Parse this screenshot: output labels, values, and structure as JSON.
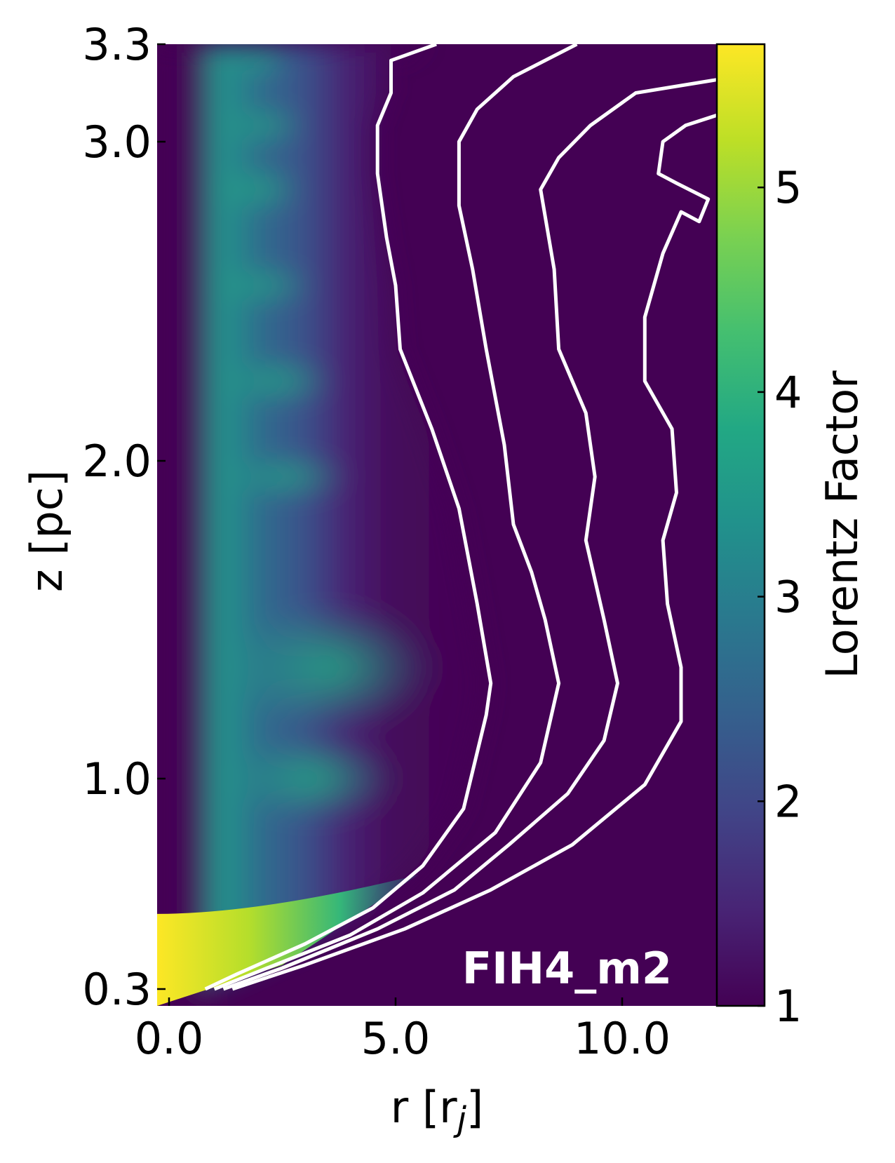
{
  "chart_data": {
    "type": "heatmap",
    "title": "",
    "panel_label": "FIH4_m2",
    "xlabel": "r [r",
    "xlabel_sub": "j",
    "xlabel_close": "]",
    "ylabel": "z [pc]",
    "colorbar_label": "Lorentz Factor",
    "colormap": "viridis",
    "xlim": [
      0,
      12.5
    ],
    "ylim": [
      0.3,
      3.3
    ],
    "clim": [
      1,
      5.7
    ],
    "x_ticks": [
      {
        "value": 0,
        "label": "0.0"
      },
      {
        "value": 5,
        "label": "5.0"
      },
      {
        "value": 10,
        "label": "10.0"
      }
    ],
    "y_ticks": [
      {
        "value": 0.3,
        "label": "0.3"
      },
      {
        "value": 1.0,
        "label": "1.0"
      },
      {
        "value": 2.0,
        "label": "2.0"
      },
      {
        "value": 3.0,
        "label": "3.0"
      },
      {
        "value": 3.3,
        "label": "3.3"
      }
    ],
    "colorbar_ticks": [
      {
        "value": 1,
        "label": "1"
      },
      {
        "value": 2,
        "label": "2"
      },
      {
        "value": 3,
        "label": "3"
      },
      {
        "value": 4,
        "label": "4"
      },
      {
        "value": 5,
        "label": "5"
      }
    ],
    "contour_color": "#ffffff",
    "contours": [
      {
        "points": [
          [
            0.8,
            0.3
          ],
          [
            1.5,
            0.35
          ],
          [
            3.0,
            0.45
          ],
          [
            4.5,
            0.57
          ],
          [
            5.6,
            0.71
          ],
          [
            6.5,
            0.9
          ],
          [
            7.0,
            1.2
          ],
          [
            7.1,
            1.3
          ],
          [
            6.8,
            1.55
          ],
          [
            6.4,
            1.85
          ],
          [
            5.8,
            2.1
          ],
          [
            5.1,
            2.35
          ],
          [
            5.0,
            2.55
          ],
          [
            4.8,
            2.7
          ],
          [
            4.6,
            2.9
          ],
          [
            4.6,
            3.05
          ],
          [
            4.9,
            3.15
          ],
          [
            4.9,
            3.25
          ],
          [
            5.9,
            3.3
          ]
        ]
      },
      {
        "points": [
          [
            1.0,
            0.3
          ],
          [
            2.0,
            0.36
          ],
          [
            4.0,
            0.48
          ],
          [
            5.6,
            0.62
          ],
          [
            7.2,
            0.82
          ],
          [
            8.2,
            1.05
          ],
          [
            8.6,
            1.3
          ],
          [
            8.3,
            1.5
          ],
          [
            8.0,
            1.65
          ],
          [
            7.6,
            1.8
          ],
          [
            7.4,
            2.05
          ],
          [
            7.0,
            2.35
          ],
          [
            6.7,
            2.6
          ],
          [
            6.4,
            2.8
          ],
          [
            6.4,
            3.0
          ],
          [
            6.8,
            3.1
          ],
          [
            7.6,
            3.2
          ],
          [
            9.0,
            3.3
          ]
        ]
      },
      {
        "points": [
          [
            1.2,
            0.3
          ],
          [
            2.5,
            0.37
          ],
          [
            4.6,
            0.5
          ],
          [
            6.3,
            0.63
          ],
          [
            7.5,
            0.78
          ],
          [
            8.8,
            0.95
          ],
          [
            9.6,
            1.12
          ],
          [
            9.9,
            1.3
          ],
          [
            9.6,
            1.5
          ],
          [
            9.2,
            1.75
          ],
          [
            9.4,
            1.95
          ],
          [
            9.2,
            2.15
          ],
          [
            8.6,
            2.35
          ],
          [
            8.5,
            2.6
          ],
          [
            8.2,
            2.85
          ],
          [
            8.6,
            2.95
          ],
          [
            9.3,
            3.05
          ],
          [
            10.3,
            3.15
          ],
          [
            12.5,
            3.2
          ]
        ]
      },
      {
        "points": [
          [
            1.4,
            0.3
          ],
          [
            3.0,
            0.38
          ],
          [
            5.2,
            0.5
          ],
          [
            7.1,
            0.63
          ],
          [
            8.9,
            0.78
          ],
          [
            10.5,
            0.98
          ],
          [
            11.3,
            1.18
          ],
          [
            11.3,
            1.35
          ],
          [
            11.0,
            1.55
          ],
          [
            10.9,
            1.75
          ],
          [
            11.2,
            1.9
          ],
          [
            11.1,
            2.1
          ],
          [
            10.5,
            2.25
          ],
          [
            10.5,
            2.45
          ],
          [
            10.9,
            2.65
          ],
          [
            11.3,
            2.78
          ],
          [
            11.7,
            2.75
          ],
          [
            11.9,
            2.82
          ],
          [
            11.2,
            2.87
          ],
          [
            10.8,
            2.9
          ],
          [
            10.9,
            3.0
          ],
          [
            11.4,
            3.05
          ],
          [
            12.5,
            3.1
          ]
        ]
      }
    ]
  }
}
